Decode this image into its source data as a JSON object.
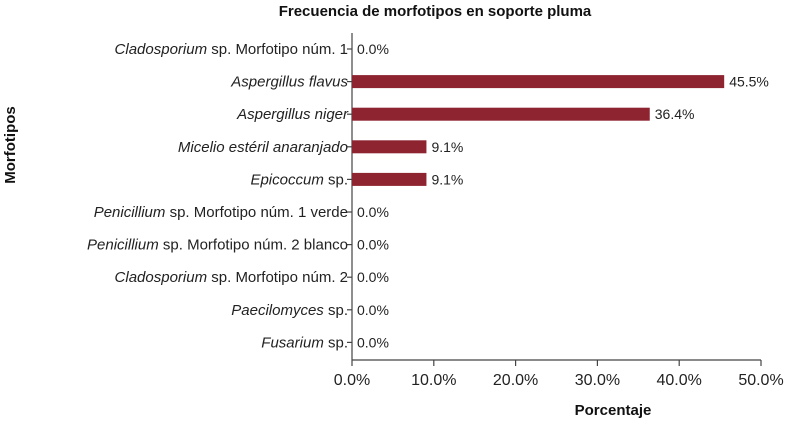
{
  "chart_data": {
    "type": "bar",
    "orientation": "horizontal",
    "title": "Frecuencia de morfotipos en soporte pluma",
    "xlabel": "Porcentaje",
    "ylabel": "Morfotipos",
    "xlim": [
      0,
      50
    ],
    "xticks": [
      "0.0%",
      "10.0%",
      "20.0%",
      "30.0%",
      "40.0%",
      "50.0%"
    ],
    "grid": false,
    "bar_color": "#8e2430",
    "categories": [
      {
        "italic": "Cladosporium",
        "rest": " sp. Morfotipo núm. 1"
      },
      {
        "italic": "Aspergillus flavus",
        "rest": ""
      },
      {
        "italic": "Aspergillus niger",
        "rest": ""
      },
      {
        "italic": "Micelio estéril anaranjado",
        "rest": ""
      },
      {
        "italic": "Epicoccum",
        "rest": " sp."
      },
      {
        "italic": "Penicillium",
        "rest": " sp. Morfotipo núm. 1 verde"
      },
      {
        "italic": "Penicillium",
        "rest": " sp. Morfotipo núm. 2 blanco"
      },
      {
        "italic": "Cladosporium",
        "rest": " sp. Morfotipo núm. 2"
      },
      {
        "italic": "Paecilomyces",
        "rest": " sp."
      },
      {
        "italic": "Fusarium",
        "rest": " sp."
      }
    ],
    "values": [
      0.0,
      45.5,
      36.4,
      9.1,
      9.1,
      0.0,
      0.0,
      0.0,
      0.0,
      0.0
    ],
    "data_labels": [
      "0.0%",
      "45.5%",
      "36.4%",
      "9.1%",
      "9.1%",
      "0.0%",
      "0.0%",
      "0.0%",
      "0.0%",
      "0.0%"
    ]
  }
}
